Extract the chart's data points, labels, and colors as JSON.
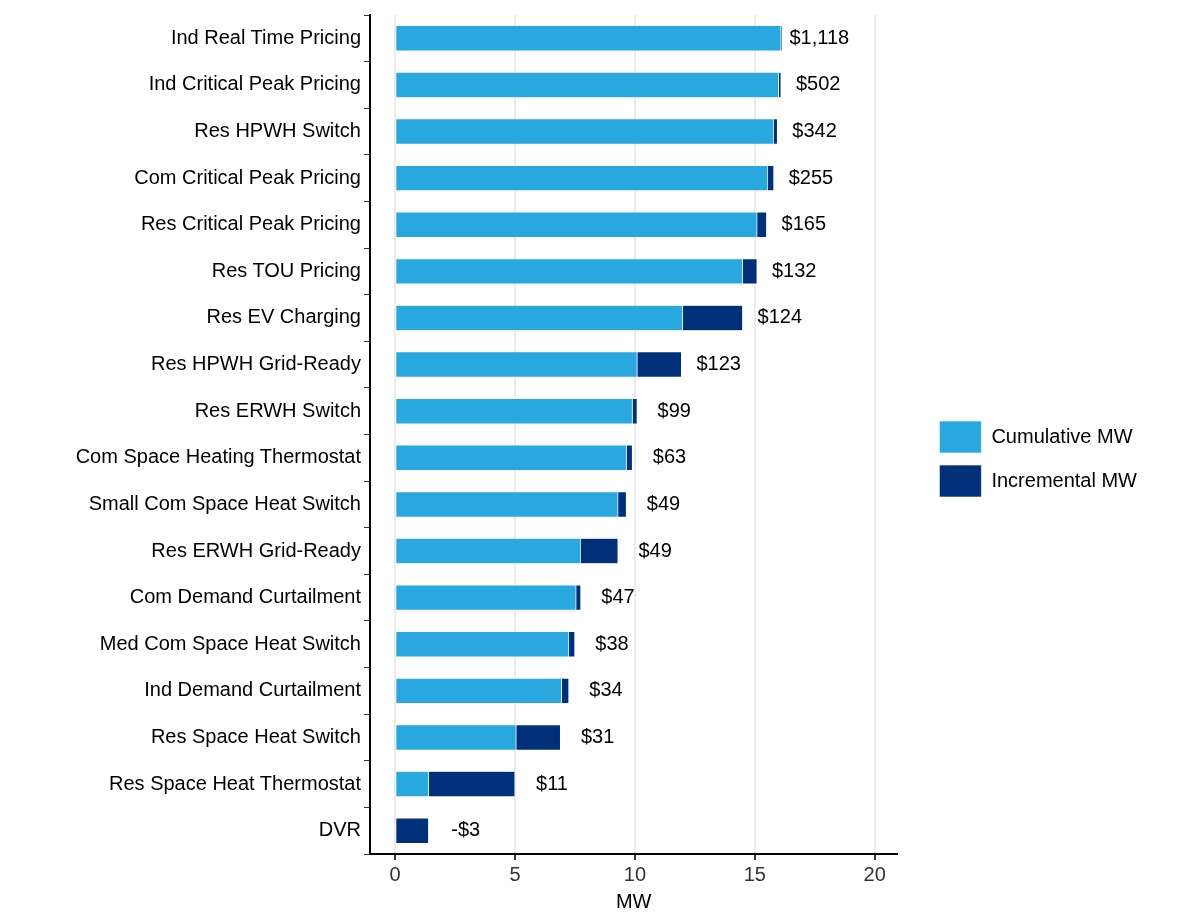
{
  "chart_data": {
    "type": "bar",
    "orientation": "horizontal",
    "stacked": true,
    "categories": [
      "Ind Real Time Pricing",
      "Ind Critical Peak Pricing",
      "Res HPWH Switch",
      "Com Critical Peak Pricing",
      "Res Critical Peak Pricing",
      "Res TOU Pricing",
      "Res EV Charging",
      "Res HPWH Grid-Ready",
      "Res ERWH Switch",
      "Com Space Heating Thermostat",
      "Small Com Space Heat Switch",
      "Res ERWH Grid-Ready",
      "Com Demand Curtailment",
      "Med Com Space Heat Switch",
      "Ind Demand Curtailment",
      "Res Space Heat Switch",
      "Res Space Heat Thermostat",
      "DVR"
    ],
    "series": [
      {
        "name": "Cumulative MW",
        "color": "#29a8e0",
        "values": [
          16.1,
          16.0,
          15.8,
          15.55,
          15.1,
          14.5,
          12.0,
          10.1,
          9.9,
          9.65,
          9.3,
          7.75,
          7.55,
          7.25,
          6.95,
          5.05,
          1.4,
          null
        ]
      },
      {
        "name": "Incremental MW",
        "color": "#00307a",
        "values": [
          0.05,
          0.1,
          0.15,
          0.25,
          0.4,
          0.6,
          2.5,
          1.85,
          0.2,
          0.25,
          0.35,
          1.55,
          0.2,
          0.25,
          0.3,
          1.85,
          3.6,
          1.4
        ]
      }
    ],
    "annotations": [
      {
        "text": "$1,118",
        "x": 16.15,
        "y": "Ind Real Time Pricing"
      },
      {
        "text": "$502",
        "x": 16.1,
        "y": "Ind Critical Peak Pricing"
      },
      {
        "text": "$342",
        "x": 15.95,
        "y": "Res HPWH Switch"
      },
      {
        "text": "$255",
        "x": 15.8,
        "y": "Com Critical Peak Pricing"
      },
      {
        "text": "$165",
        "x": 15.5,
        "y": "Res Critical Peak Pricing"
      },
      {
        "text": "$132",
        "x": 15.1,
        "y": "Res TOU Pricing"
      },
      {
        "text": "$124",
        "x": 14.5,
        "y": "Res EV Charging"
      },
      {
        "text": "$123",
        "x": 11.95,
        "y": "Res HPWH Grid-Ready"
      },
      {
        "text": "$99",
        "x": 10.1,
        "y": "Res ERWH Switch"
      },
      {
        "text": "$63",
        "x": 9.9,
        "y": "Com Space Heating Thermostat"
      },
      {
        "text": "$49",
        "x": 9.65,
        "y": "Small Com Space Heat Switch"
      },
      {
        "text": "$49",
        "x": 9.3,
        "y": "Res ERWH Grid-Ready"
      },
      {
        "text": "$47",
        "x": 7.75,
        "y": "Com Demand Curtailment"
      },
      {
        "text": "$38",
        "x": 7.5,
        "y": "Med Com Space Heat Switch"
      },
      {
        "text": "$34",
        "x": 7.25,
        "y": "Ind Demand Curtailment"
      },
      {
        "text": "$31",
        "x": 6.9,
        "y": "Res Space Heat Switch"
      },
      {
        "text": "$11",
        "x": 5.0,
        "y": "Res Space Heat Thermostat"
      },
      {
        "text": "-$3",
        "x": 1.4,
        "y": "DVR"
      }
    ],
    "xlabel": "MW",
    "xlim": [
      -1.05,
      20.95
    ],
    "xticks": [
      0,
      5,
      10,
      15,
      20
    ],
    "grid": "x",
    "legend": "right"
  }
}
